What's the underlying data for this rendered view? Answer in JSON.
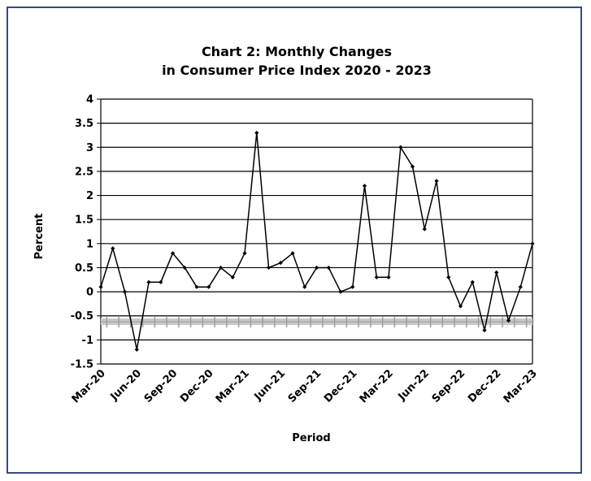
{
  "chart_data": {
    "type": "line",
    "title_line1": "Chart 2: Monthly Changes",
    "title_line2": "in Consumer Price Index 2020 - 2023",
    "xlabel": "Period",
    "ylabel": "Percent",
    "ylim": [
      -1.5,
      4
    ],
    "yticks": [
      "4",
      "3.5",
      "3",
      "2.5",
      "2",
      "1.5",
      "1",
      "0.5",
      "0",
      "-0.5",
      "-1",
      "-1.5"
    ],
    "ytick_values": [
      4,
      3.5,
      3,
      2.5,
      2,
      1.5,
      1,
      0.5,
      0,
      -0.5,
      -1,
      -1.5
    ],
    "x_tick_labels": [
      "Mar-20",
      "Jun-20",
      "Sep-20",
      "Dec-20",
      "Mar-21",
      "Jun-21",
      "Sep-21",
      "Dec-21",
      "Mar-22",
      "Jun-22",
      "Sep-22",
      "Dec-22",
      "Mar-23"
    ],
    "x_tick_indices": [
      0,
      3,
      6,
      9,
      12,
      15,
      18,
      21,
      24,
      27,
      30,
      33,
      36
    ],
    "grid": "horizontal",
    "marker_color": "#000000",
    "line_color": "#000000",
    "series": [
      {
        "x": [
          "Mar-20",
          "Apr-20",
          "May-20",
          "Jun-20",
          "Jul-20",
          "Aug-20",
          "Sep-20",
          "Oct-20",
          "Nov-20",
          "Dec-20",
          "Jan-21",
          "Feb-21",
          "Mar-21",
          "Apr-21",
          "May-21",
          "Jun-21",
          "Jul-21",
          "Aug-21",
          "Sep-21",
          "Oct-21",
          "Nov-21",
          "Dec-21",
          "Jan-22",
          "Feb-22",
          "Mar-22",
          "Apr-22",
          "May-22",
          "Jun-22",
          "Jul-22",
          "Aug-22",
          "Sep-22",
          "Oct-22",
          "Nov-22",
          "Dec-22",
          "Jan-23",
          "Feb-23",
          "Mar-23"
        ],
        "values": [
          0.1,
          0.9,
          0.0,
          -1.2,
          0.2,
          0.2,
          0.8,
          0.5,
          0.1,
          0.1,
          0.5,
          0.3,
          0.8,
          3.3,
          0.5,
          0.6,
          0.8,
          0.1,
          0.5,
          0.5,
          0.0,
          0.1,
          2.2,
          0.3,
          0.3,
          3.0,
          2.6,
          1.3,
          2.3,
          0.3,
          -0.3,
          0.2,
          -0.8,
          0.4,
          -0.6,
          0.1,
          1.0
        ]
      }
    ]
  }
}
